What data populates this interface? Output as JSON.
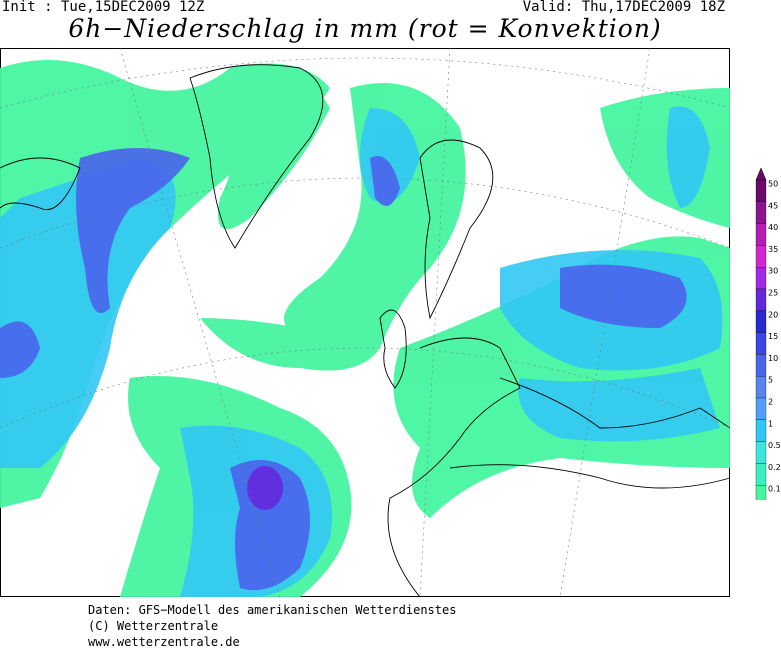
{
  "header": {
    "init": "Init : Tue,15DEC2009 12Z",
    "valid": "Valid: Thu,17DEC2009 18Z",
    "title": "6h−Niederschlag in mm (rot = Konvektion)"
  },
  "legend": {
    "items": [
      {
        "label": "50",
        "color": "#6a0a6a"
      },
      {
        "label": "45",
        "color": "#8c148c"
      },
      {
        "label": "40",
        "color": "#b41eb4"
      },
      {
        "label": "35",
        "color": "#d228d2"
      },
      {
        "label": "30",
        "color": "#a028e6"
      },
      {
        "label": "25",
        "color": "#6428dc"
      },
      {
        "label": "20",
        "color": "#2828d2"
      },
      {
        "label": "15",
        "color": "#3c46e6"
      },
      {
        "label": "10",
        "color": "#4a64ec"
      },
      {
        "label": "5",
        "color": "#5a82f0"
      },
      {
        "label": "2",
        "color": "#50a0fa"
      },
      {
        "label": "1",
        "color": "#32c8f5"
      },
      {
        "label": "0.5",
        "color": "#3ce6dc"
      },
      {
        "label": "0.2",
        "color": "#3cf0be"
      },
      {
        "label": "0.1",
        "color": "#46f5a0"
      }
    ]
  },
  "footer": {
    "lines": [
      "Daten: GFS−Modell des amerikanischen Wetterdienstes",
      "(C) Wetterzentrale",
      "www.wetterzentrale.de"
    ]
  }
}
